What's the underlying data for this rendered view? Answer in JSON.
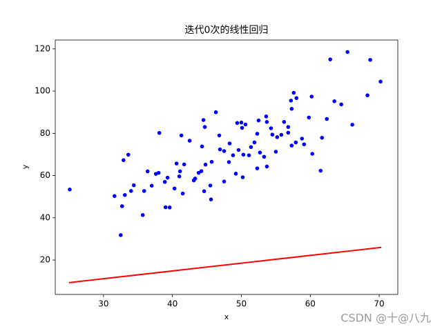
{
  "chart_data": {
    "type": "scatter",
    "title": "迭代0次的线性回归",
    "xlabel": "x",
    "ylabel": "y",
    "xlim": [
      23,
      72.7
    ],
    "ylim": [
      3.7,
      124.2
    ],
    "xticks": [
      30,
      40,
      50,
      60,
      70
    ],
    "yticks": [
      20,
      40,
      60,
      80,
      100,
      120
    ],
    "grid": false,
    "scatter": {
      "color": "#0000ff",
      "x": [
        25.1,
        31.6,
        32.5,
        32.7,
        32.9,
        33.1,
        33.6,
        34.0,
        34.4,
        35.7,
        35.9,
        36.4,
        37.0,
        37.6,
        38.0,
        38.1,
        38.9,
        39.0,
        39.3,
        39.6,
        40.3,
        40.6,
        41.0,
        41.1,
        41.3,
        41.5,
        41.7,
        42.5,
        43.1,
        43.3,
        43.8,
        44.2,
        44.3,
        44.5,
        44.7,
        44.6,
        44.8,
        45.5,
        45.6,
        45.7,
        46.3,
        46.8,
        46.9,
        47.5,
        47.5,
        48.2,
        48.3,
        48.8,
        49.2,
        49.4,
        49.6,
        50.0,
        50.1,
        50.2,
        50.3,
        50.6,
        51.1,
        51.4,
        51.9,
        52.3,
        52.3,
        52.5,
        52.7,
        53.3,
        53.6,
        53.7,
        53.7,
        54.3,
        54.5,
        55.0,
        55.2,
        55.8,
        56.2,
        56.8,
        56.8,
        57.2,
        57.3,
        57.3,
        57.6,
        58.0,
        57.9,
        58.8,
        59.1,
        59.8,
        60.2,
        60.3,
        61.5,
        61.7,
        62.4,
        62.9,
        63.5,
        64.5,
        65.4,
        66.1,
        68.3,
        68.7,
        70.2
      ],
      "y": [
        53.4,
        50.3,
        31.8,
        45.5,
        67.3,
        50.8,
        69.9,
        52.7,
        55.4,
        41.3,
        52.7,
        62.0,
        55.2,
        60.8,
        61.3,
        80.2,
        57.0,
        45.0,
        59.0,
        44.9,
        53.9,
        65.7,
        59.6,
        62.0,
        79.0,
        51.5,
        65.3,
        76.5,
        57.7,
        58.6,
        61.3,
        62.1,
        73.8,
        86.3,
        83.0,
        52.6,
        65.2,
        55.3,
        48.7,
        66.5,
        90.0,
        79.0,
        72.4,
        71.6,
        57.2,
        66.4,
        75.2,
        69.6,
        60.9,
        84.9,
        72.1,
        85.1,
        82.6,
        59.2,
        69.9,
        84.2,
        69.6,
        73.5,
        75.7,
        63.4,
        79.8,
        86.1,
        70.9,
        68.9,
        88.0,
        64.3,
        85.4,
        82.4,
        79.4,
        71.3,
        78.2,
        79.3,
        85.4,
        80.3,
        83.0,
        95.5,
        91.6,
        74.2,
        99.2,
        96.7,
        75.7,
        77.5,
        74.8,
        87.5,
        97.4,
        70.3,
        62.3,
        77.9,
        86.8,
        115.0,
        95.2,
        93.7,
        118.5,
        84.1,
        98.0,
        114.8,
        104.5
      ]
    },
    "line": {
      "color": "#ff0000",
      "x": [
        25,
        70.3
      ],
      "y": [
        9.3,
        26
      ]
    },
    "watermark": "CSDN @十@八九"
  }
}
